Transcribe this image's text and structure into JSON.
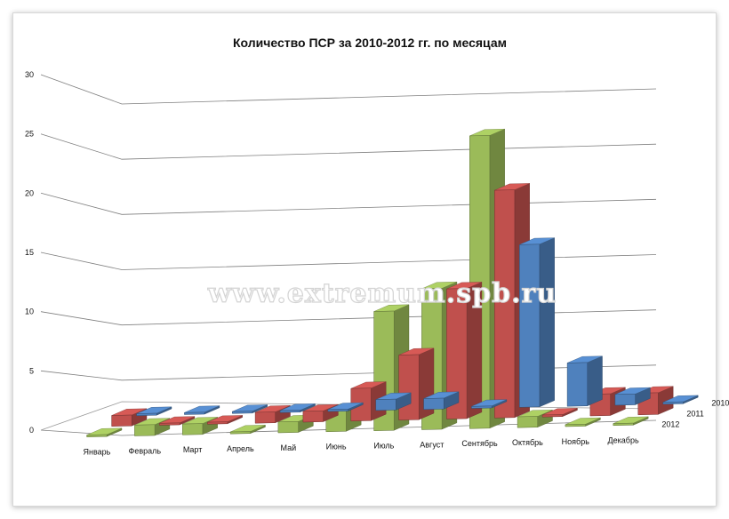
{
  "watermark": "www.extremum.spb.ru",
  "colors": {
    "2010": "#4f81bd",
    "2011": "#c0504d",
    "2012": "#9bbb59"
  },
  "chart_data": {
    "type": "bar",
    "subtype": "3d-column",
    "title": "Количество ПСР за 2010-2012 гг. по месяцам",
    "categories": [
      "Январь",
      "Февраль",
      "Март",
      "Апрель",
      "Май",
      "Июнь",
      "Июль",
      "Август",
      "Сентябрь",
      "Октябрь",
      "Ноябрь",
      "Декабрь"
    ],
    "series": [
      {
        "name": "2010",
        "values": [
          0,
          0,
          0,
          0,
          0,
          1,
          1,
          0,
          15,
          4,
          1,
          0
        ]
      },
      {
        "name": "2011",
        "values": [
          1,
          0,
          0,
          1,
          1,
          3,
          6,
          12,
          21,
          0,
          2,
          2
        ]
      },
      {
        "name": "2012",
        "values": [
          0,
          1,
          1,
          0,
          1,
          2,
          11,
          13,
          27,
          1,
          0,
          0
        ]
      }
    ],
    "yticks": [
      "0",
      "5",
      "10",
      "15",
      "20",
      "25",
      "30"
    ],
    "ylim": [
      0,
      30
    ],
    "grid": true
  }
}
